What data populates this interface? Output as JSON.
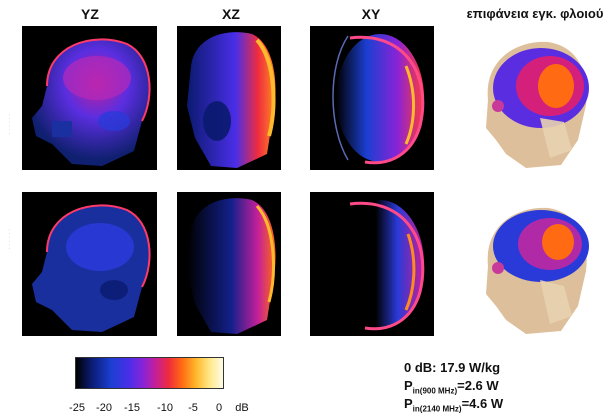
{
  "columns": {
    "yz": "YZ",
    "xz": "XZ",
    "xy": "XY",
    "surface": "επιφάνεια εγκ. φλοιού"
  },
  "colorbar": {
    "ticks": [
      "-25",
      "-20",
      "-15",
      "-10",
      "-5",
      "0"
    ],
    "unit": "dB",
    "colors": [
      "#000000",
      "#1b3fd2",
      "#8a23d6",
      "#ef2b3f",
      "#ffb92c",
      "#fffbe6"
    ]
  },
  "info": {
    "reference": "0 dB: 17.9  W/kg",
    "p900_prefix": "P",
    "p900_sub": "in(900 MHz)",
    "p900_value": "=2.6 W",
    "p2140_prefix": "P",
    "p2140_sub": "in(2140 MHz)",
    "p2140_value": "=4.6 W"
  }
}
